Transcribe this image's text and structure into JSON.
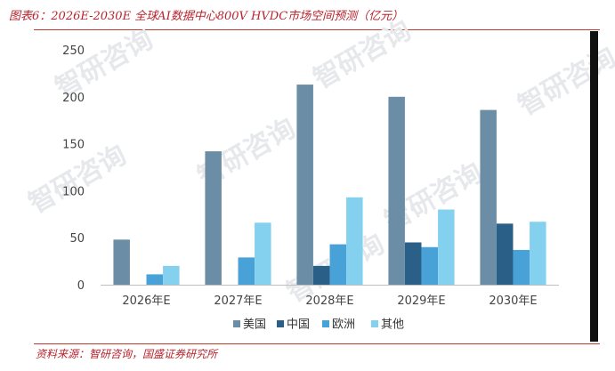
{
  "figure": {
    "title": "图表6：2026E-2030E 全球AI数据中心800V HVDC市场空间预测（亿元）",
    "source": "资料来源：智研咨询，国盛证券研究所",
    "watermark": "智研咨询"
  },
  "colors": {
    "accent": "#b8232d",
    "美国": "#6b8ea6",
    "中国": "#2a6088",
    "欧洲": "#48a2d8",
    "其他": "#84d0ef"
  },
  "chart_data": {
    "type": "bar",
    "title": "",
    "xlabel": "",
    "ylabel": "",
    "categories": [
      "2026年E",
      "2027年E",
      "2028年E",
      "2029年E",
      "2030年E"
    ],
    "ylim": [
      0,
      250
    ],
    "yticks": [
      0,
      50,
      100,
      150,
      200,
      250
    ],
    "grid": false,
    "legend_position": "bottom",
    "series": [
      {
        "name": "美国",
        "values": [
          48,
          142,
          213,
          200,
          186
        ]
      },
      {
        "name": "中国",
        "values": [
          0,
          0,
          20,
          45,
          65
        ]
      },
      {
        "name": "欧洲",
        "values": [
          11,
          29,
          43,
          40,
          37
        ]
      },
      {
        "name": "其他",
        "values": [
          20,
          66,
          93,
          80,
          67
        ]
      }
    ]
  }
}
